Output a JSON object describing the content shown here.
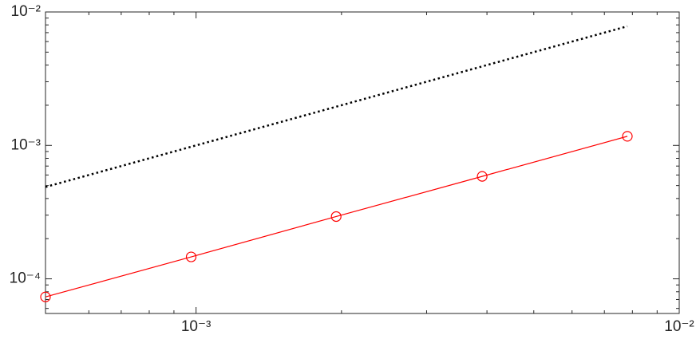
{
  "chart_data": {
    "type": "line",
    "x": [
      0.000488,
      0.000977,
      0.00195,
      0.00391,
      0.00781
    ],
    "series": [
      {
        "color": "#000000",
        "line_style": "dotted",
        "values": [
          0.000488,
          0.000977,
          0.00195,
          0.00391,
          0.00781
        ]
      },
      {
        "color": "#ff0000",
        "line_style": "solid",
        "marker": "circle",
        "values": [
          7.32e-05,
          0.000146,
          0.000293,
          0.000586,
          0.00117
        ]
      }
    ],
    "xscale": "log",
    "yscale": "log",
    "xlim": [
      0.000488,
      0.01
    ],
    "ylim": [
      5.5e-05,
      0.01
    ],
    "xticks": [
      {
        "value": 0.001,
        "label": "10⁻³"
      },
      {
        "value": 0.01,
        "label": "10⁻²"
      }
    ],
    "yticks": [
      {
        "value": 0.0001,
        "label": "10⁻⁴"
      },
      {
        "value": 0.001,
        "label": "10⁻³"
      },
      {
        "value": 0.01,
        "label": "10⁻²"
      }
    ],
    "minor_xticks": [
      0.0006,
      0.0007,
      0.0008,
      0.0009,
      0.002,
      0.003,
      0.004,
      0.005,
      0.006,
      0.007,
      0.008,
      0.009
    ],
    "minor_yticks": [
      6e-05,
      7e-05,
      8e-05,
      9e-05,
      0.0002,
      0.0003,
      0.0004,
      0.0005,
      0.0006,
      0.0007,
      0.0008,
      0.0009,
      0.002,
      0.003,
      0.004,
      0.005,
      0.006,
      0.007,
      0.008,
      0.009
    ]
  }
}
